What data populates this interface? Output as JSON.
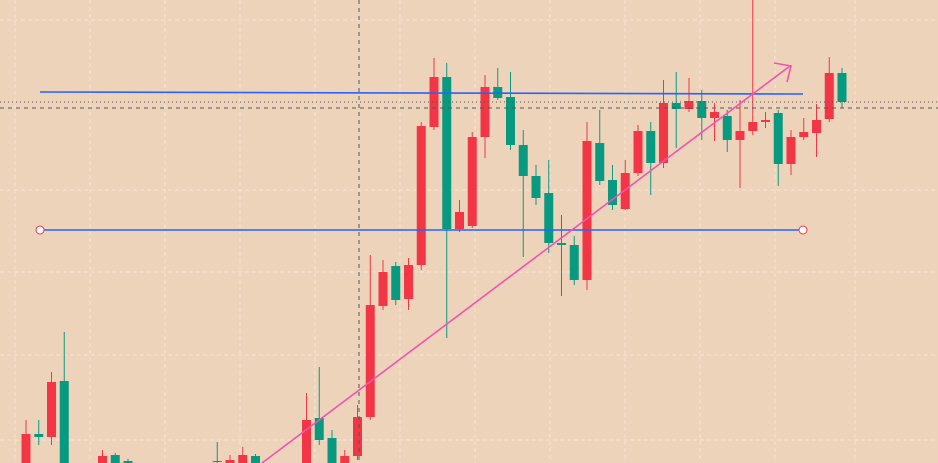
{
  "chart_data": {
    "type": "candlestick",
    "open": [
      0,
      29,
      26,
      82,
      null,
      null,
      0,
      8,
      2,
      null,
      null,
      null,
      null,
      null,
      null,
      2,
      0,
      0,
      7,
      null,
      null,
      null,
      0,
      45,
      25,
      0,
      7,
      46,
      157,
      197,
      164,
      198,
      336,
      386,
      234,
      237,
      326,
      376,
      366,
      318,
      287,
      270,
      220,
      218,
      183,
      320,
      283,
      254,
      290,
      332,
      300,
      360,
      354,
      362,
      345,
      347,
      323,
      332,
      341,
      350,
      299,
      326,
      330,
      344,
      390
    ],
    "high": [
      43,
      43,
      91,
      131,
      null,
      null,
      13,
      10,
      4,
      null,
      null,
      null,
      null,
      null,
      null,
      21,
      8,
      16,
      9,
      null,
      null,
      null,
      70,
      96,
      33,
      13,
      58,
      208,
      203,
      201,
      205,
      341,
      405,
      400,
      263,
      331,
      388,
      395,
      391,
      333,
      298,
      303,
      248,
      227,
      341,
      353,
      298,
      303,
      338,
      341,
      383,
      391,
      385,
      373,
      360,
      353,
      363,
      463,
      351,
      353,
      333,
      345,
      359,
      406,
      395
    ],
    "low": [
      0,
      18,
      18,
      0,
      null,
      null,
      0,
      0,
      0,
      null,
      null,
      null,
      null,
      null,
      null,
      0,
      0,
      0,
      0,
      null,
      null,
      null,
      0,
      18,
      0,
      0,
      3,
      43,
      153,
      158,
      153,
      193,
      333,
      125,
      231,
      235,
      305,
      363,
      313,
      206,
      258,
      210,
      167,
      178,
      173,
      278,
      253,
      253,
      287,
      268,
      295,
      315,
      351,
      323,
      322,
      311,
      275,
      328,
      335,
      277,
      288,
      323,
      306,
      341,
      355
    ],
    "close": [
      29,
      26,
      81,
      0,
      null,
      null,
      7,
      0,
      0,
      null,
      null,
      null,
      null,
      null,
      null,
      1,
      3,
      8,
      0,
      null,
      null,
      null,
      43,
      23,
      0,
      7,
      46,
      158,
      191,
      163,
      198,
      337,
      386,
      234,
      251,
      326,
      376,
      365,
      318,
      287,
      265,
      220,
      218,
      183,
      322,
      282,
      258,
      290,
      332,
      300,
      360,
      354,
      362,
      345,
      351,
      323,
      332,
      341,
      343,
      299,
      326,
      331,
      343,
      390,
      361
    ],
    "ylim": [
      0,
      463
    ],
    "up_color": "#f23645",
    "down_color": "#089981"
  }
}
